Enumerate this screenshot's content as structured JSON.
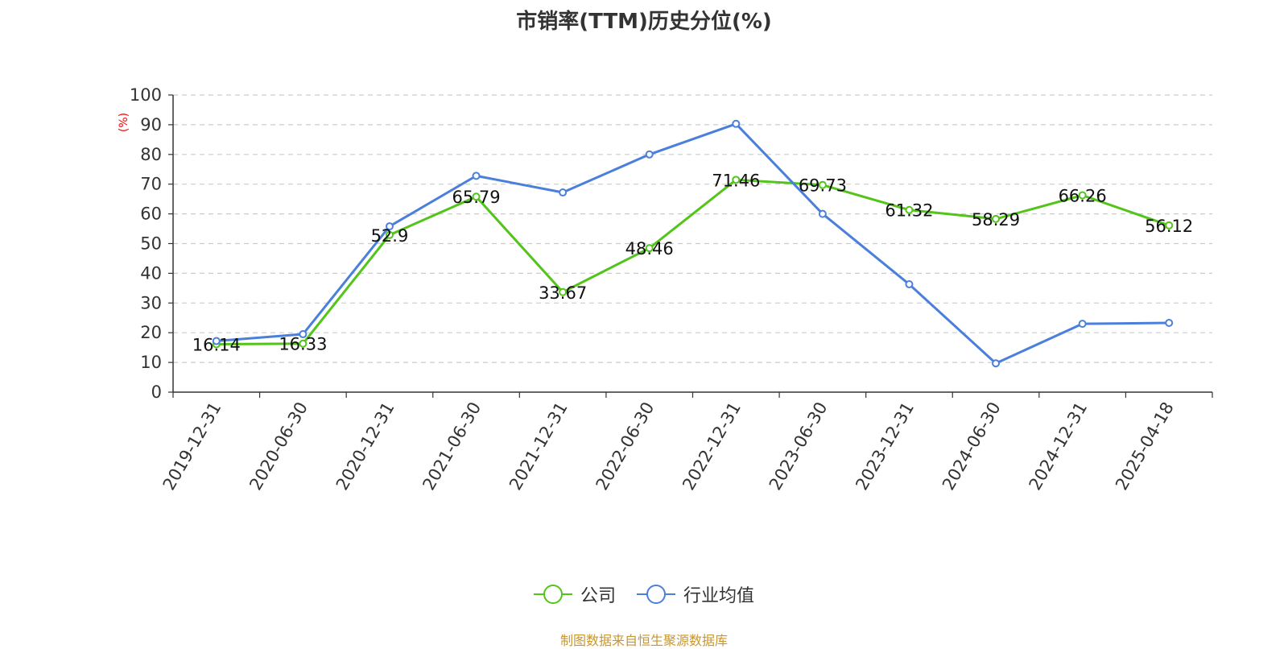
{
  "chart_data": {
    "type": "line",
    "title": "市销率(TTM)历史分位(%)",
    "ylabel": "(%)",
    "xlabel": "",
    "ylim": [
      0,
      100
    ],
    "yticks": [
      0,
      10,
      20,
      30,
      40,
      50,
      60,
      70,
      80,
      90,
      100
    ],
    "grid": true,
    "legend_position": "bottom",
    "categories": [
      "2019-12-31",
      "2020-06-30",
      "2020-12-31",
      "2021-06-30",
      "2021-12-31",
      "2022-06-30",
      "2022-12-31",
      "2023-06-30",
      "2023-12-31",
      "2024-06-30",
      "2024-12-31",
      "2025-04-18"
    ],
    "series": [
      {
        "name": "公司",
        "color": "#52c41a",
        "values": [
          16.14,
          16.33,
          52.9,
          65.79,
          33.67,
          48.46,
          71.46,
          69.73,
          61.32,
          58.29,
          66.26,
          56.12
        ],
        "labels": [
          "16.14",
          "16.33",
          "52.9",
          "65.79",
          "33.67",
          "48.46",
          "71.46",
          "69.73",
          "61.32",
          "58.29",
          "66.26",
          "56.12"
        ]
      },
      {
        "name": "行业均值",
        "color": "#4a7fdb",
        "values": [
          17.2,
          19.5,
          55.8,
          72.8,
          67.2,
          80.0,
          90.3,
          60.0,
          36.3,
          9.7,
          23.0,
          23.3
        ]
      }
    ]
  },
  "source_note": "制图数据来自恒生聚源数据库",
  "colors": {
    "source_note": "#c8962e",
    "ylabel": "#ff0000",
    "axis": "#333333",
    "grid": "#cccccc"
  }
}
